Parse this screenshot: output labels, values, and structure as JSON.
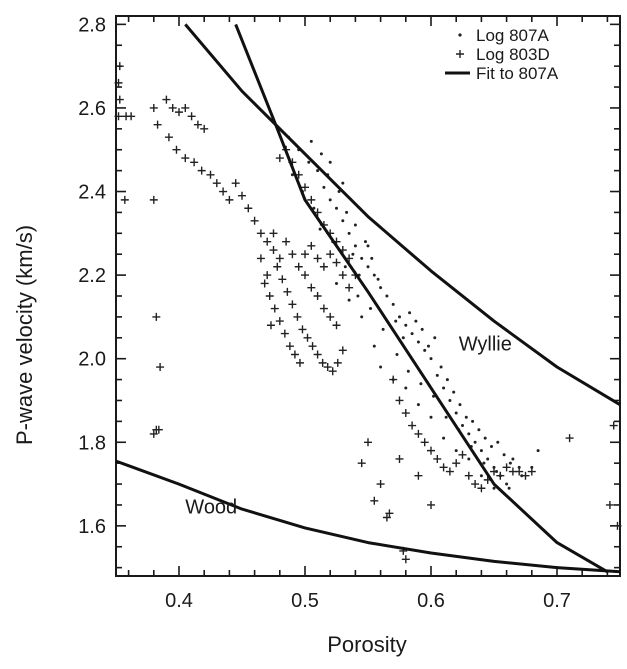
{
  "chart_data": {
    "type": "scatter",
    "xlabel": "Porosity",
    "ylabel": "P-wave velocity (km/s)",
    "xlim": [
      0.35,
      0.75
    ],
    "ylim": [
      1.48,
      2.82
    ],
    "xticks": [
      0.4,
      0.5,
      0.6,
      0.7
    ],
    "yticks": [
      1.6,
      1.8,
      2.0,
      2.2,
      2.4,
      2.6,
      2.8
    ],
    "xtick_labels": [
      "0.4",
      "0.5",
      "0.6",
      "0.7"
    ],
    "ytick_labels": [
      "1.6",
      "1.8",
      "2.0",
      "2.2",
      "2.4",
      "2.6",
      "2.8"
    ],
    "grid": false,
    "legend_position": "top-right",
    "legend": [
      {
        "label": "Log 807A",
        "marker": "dot"
      },
      {
        "label": "Log 803D",
        "marker": "plus"
      },
      {
        "label": "Fit to 807A",
        "marker": "line"
      }
    ],
    "series": [
      {
        "name": "Log 807A",
        "marker": "dot",
        "points": [
          [
            0.487,
            2.53
          ],
          [
            0.495,
            2.5
          ],
          [
            0.503,
            2.47
          ],
          [
            0.51,
            2.45
          ],
          [
            0.515,
            2.41
          ],
          [
            0.52,
            2.38
          ],
          [
            0.525,
            2.36
          ],
          [
            0.53,
            2.33
          ],
          [
            0.535,
            2.3
          ],
          [
            0.54,
            2.27
          ],
          [
            0.545,
            2.24
          ],
          [
            0.55,
            2.22
          ],
          [
            0.555,
            2.2
          ],
          [
            0.56,
            2.17
          ],
          [
            0.57,
            2.13
          ],
          [
            0.575,
            2.1
          ],
          [
            0.58,
            2.08
          ],
          [
            0.585,
            2.06
          ],
          [
            0.59,
            2.04
          ],
          [
            0.595,
            2.02
          ],
          [
            0.6,
            2.0
          ],
          [
            0.605,
            1.96
          ],
          [
            0.61,
            1.93
          ],
          [
            0.615,
            1.9
          ],
          [
            0.62,
            1.87
          ],
          [
            0.625,
            1.84
          ],
          [
            0.63,
            1.82
          ],
          [
            0.635,
            1.8
          ],
          [
            0.64,
            1.78
          ],
          [
            0.645,
            1.76
          ],
          [
            0.65,
            1.74
          ],
          [
            0.655,
            1.72
          ],
          [
            0.66,
            1.7
          ],
          [
            0.665,
            1.76
          ],
          [
            0.67,
            1.74
          ],
          [
            0.505,
            2.52
          ],
          [
            0.513,
            2.49
          ],
          [
            0.518,
            2.44
          ],
          [
            0.527,
            2.4
          ],
          [
            0.533,
            2.35
          ],
          [
            0.538,
            2.25
          ],
          [
            0.543,
            2.2
          ],
          [
            0.548,
            2.28
          ],
          [
            0.553,
            2.24
          ],
          [
            0.558,
            2.19
          ],
          [
            0.565,
            2.15
          ],
          [
            0.572,
            2.09
          ],
          [
            0.578,
            2.05
          ],
          [
            0.583,
            2.11
          ],
          [
            0.588,
            2.09
          ],
          [
            0.593,
            2.07
          ],
          [
            0.598,
            2.03
          ],
          [
            0.603,
            2.05
          ],
          [
            0.608,
            1.98
          ],
          [
            0.613,
            1.95
          ],
          [
            0.618,
            1.92
          ],
          [
            0.623,
            1.89
          ],
          [
            0.628,
            1.86
          ],
          [
            0.633,
            1.85
          ],
          [
            0.638,
            1.83
          ],
          [
            0.643,
            1.81
          ],
          [
            0.648,
            1.79
          ],
          [
            0.653,
            1.8
          ],
          [
            0.658,
            1.77
          ],
          [
            0.663,
            1.75
          ],
          [
            0.49,
            2.44
          ],
          [
            0.498,
            2.4
          ],
          [
            0.507,
            2.36
          ],
          [
            0.512,
            2.31
          ],
          [
            0.522,
            2.28
          ],
          [
            0.532,
            2.22
          ],
          [
            0.542,
            2.15
          ],
          [
            0.552,
            2.12
          ],
          [
            0.562,
            2.07
          ],
          [
            0.573,
            2.01
          ],
          [
            0.582,
            1.97
          ],
          [
            0.592,
            1.94
          ],
          [
            0.602,
            1.91
          ],
          [
            0.612,
            1.86
          ],
          [
            0.622,
            1.83
          ],
          [
            0.632,
            1.79
          ],
          [
            0.642,
            1.75
          ],
          [
            0.652,
            1.73
          ],
          [
            0.662,
            1.69
          ],
          [
            0.672,
            1.72
          ],
          [
            0.68,
            1.74
          ],
          [
            0.685,
            1.78
          ],
          [
            0.56,
            1.98
          ],
          [
            0.57,
            1.95
          ],
          [
            0.58,
            1.93
          ],
          [
            0.59,
            1.89
          ],
          [
            0.6,
            1.86
          ],
          [
            0.61,
            1.81
          ],
          [
            0.62,
            1.78
          ],
          [
            0.63,
            1.76
          ],
          [
            0.64,
            1.72
          ],
          [
            0.65,
            1.69
          ],
          [
            0.525,
            2.18
          ],
          [
            0.535,
            2.14
          ],
          [
            0.545,
            2.1
          ],
          [
            0.555,
            2.03
          ],
          [
            0.54,
            2.32
          ],
          [
            0.55,
            2.27
          ],
          [
            0.53,
            2.42
          ],
          [
            0.52,
            2.47
          ]
        ]
      },
      {
        "name": "Log 803D",
        "marker": "plus",
        "points": [
          [
            0.353,
            2.7
          ],
          [
            0.352,
            2.66
          ],
          [
            0.353,
            2.62
          ],
          [
            0.352,
            2.58
          ],
          [
            0.362,
            2.58
          ],
          [
            0.38,
            2.6
          ],
          [
            0.39,
            2.62
          ],
          [
            0.395,
            2.6
          ],
          [
            0.4,
            2.59
          ],
          [
            0.405,
            2.6
          ],
          [
            0.41,
            2.58
          ],
          [
            0.415,
            2.56
          ],
          [
            0.42,
            2.55
          ],
          [
            0.383,
            2.56
          ],
          [
            0.392,
            2.53
          ],
          [
            0.398,
            2.5
          ],
          [
            0.405,
            2.48
          ],
          [
            0.412,
            2.47
          ],
          [
            0.418,
            2.45
          ],
          [
            0.425,
            2.44
          ],
          [
            0.43,
            2.42
          ],
          [
            0.435,
            2.4
          ],
          [
            0.44,
            2.38
          ],
          [
            0.445,
            2.42
          ],
          [
            0.45,
            2.39
          ],
          [
            0.455,
            2.36
          ],
          [
            0.46,
            2.33
          ],
          [
            0.465,
            2.3
          ],
          [
            0.47,
            2.28
          ],
          [
            0.475,
            2.3
          ],
          [
            0.48,
            2.48
          ],
          [
            0.485,
            2.5
          ],
          [
            0.49,
            2.47
          ],
          [
            0.495,
            2.44
          ],
          [
            0.5,
            2.41
          ],
          [
            0.505,
            2.38
          ],
          [
            0.51,
            2.35
          ],
          [
            0.515,
            2.32
          ],
          [
            0.52,
            2.3
          ],
          [
            0.525,
            2.28
          ],
          [
            0.53,
            2.26
          ],
          [
            0.535,
            2.24
          ],
          [
            0.54,
            2.2
          ],
          [
            0.478,
            2.22
          ],
          [
            0.482,
            2.19
          ],
          [
            0.486,
            2.16
          ],
          [
            0.49,
            2.13
          ],
          [
            0.494,
            2.1
          ],
          [
            0.498,
            2.07
          ],
          [
            0.502,
            2.05
          ],
          [
            0.506,
            2.03
          ],
          [
            0.51,
            2.01
          ],
          [
            0.514,
            1.99
          ],
          [
            0.518,
            1.98
          ],
          [
            0.522,
            1.97
          ],
          [
            0.526,
            1.99
          ],
          [
            0.53,
            2.02
          ],
          [
            0.475,
            2.26
          ],
          [
            0.48,
            2.24
          ],
          [
            0.485,
            2.28
          ],
          [
            0.49,
            2.25
          ],
          [
            0.495,
            2.22
          ],
          [
            0.5,
            2.2
          ],
          [
            0.505,
            2.17
          ],
          [
            0.51,
            2.15
          ],
          [
            0.515,
            2.12
          ],
          [
            0.52,
            2.1
          ],
          [
            0.525,
            2.08
          ],
          [
            0.47,
            2.2
          ],
          [
            0.472,
            2.15
          ],
          [
            0.476,
            2.12
          ],
          [
            0.48,
            2.09
          ],
          [
            0.484,
            2.06
          ],
          [
            0.488,
            2.03
          ],
          [
            0.492,
            2.01
          ],
          [
            0.496,
            1.99
          ],
          [
            0.5,
            2.25
          ],
          [
            0.505,
            2.27
          ],
          [
            0.51,
            2.24
          ],
          [
            0.515,
            2.22
          ],
          [
            0.52,
            2.25
          ],
          [
            0.525,
            2.23
          ],
          [
            0.53,
            2.2
          ],
          [
            0.535,
            2.17
          ],
          [
            0.465,
            2.24
          ],
          [
            0.468,
            2.18
          ],
          [
            0.473,
            2.08
          ],
          [
            0.382,
            2.1
          ],
          [
            0.382,
            1.83
          ],
          [
            0.38,
            1.82
          ],
          [
            0.384,
            1.83
          ],
          [
            0.385,
            1.98
          ],
          [
            0.38,
            2.38
          ],
          [
            0.357,
            2.38
          ],
          [
            0.358,
            2.58
          ],
          [
            0.57,
            1.95
          ],
          [
            0.575,
            1.9
          ],
          [
            0.58,
            1.87
          ],
          [
            0.585,
            1.84
          ],
          [
            0.59,
            1.82
          ],
          [
            0.595,
            1.8
          ],
          [
            0.6,
            1.78
          ],
          [
            0.605,
            1.76
          ],
          [
            0.61,
            1.74
          ],
          [
            0.615,
            1.73
          ],
          [
            0.62,
            1.75
          ],
          [
            0.625,
            1.77
          ],
          [
            0.63,
            1.72
          ],
          [
            0.635,
            1.7
          ],
          [
            0.64,
            1.69
          ],
          [
            0.645,
            1.71
          ],
          [
            0.65,
            1.73
          ],
          [
            0.655,
            1.72
          ],
          [
            0.66,
            1.74
          ],
          [
            0.665,
            1.73
          ],
          [
            0.67,
            1.73
          ],
          [
            0.675,
            1.72
          ],
          [
            0.68,
            1.73
          ],
          [
            0.71,
            1.81
          ],
          [
            0.745,
            1.84
          ],
          [
            0.742,
            1.65
          ],
          [
            0.748,
            1.6
          ],
          [
            0.565,
            1.62
          ],
          [
            0.567,
            1.63
          ],
          [
            0.578,
            1.54
          ],
          [
            0.58,
            1.52
          ],
          [
            0.56,
            1.7
          ],
          [
            0.575,
            1.76
          ],
          [
            0.555,
            1.66
          ],
          [
            0.6,
            1.65
          ],
          [
            0.545,
            1.75
          ],
          [
            0.55,
            1.8
          ],
          [
            0.59,
            1.72
          ]
        ]
      }
    ],
    "curves": [
      {
        "name": "Fit to 807A",
        "points": [
          [
            0.445,
            2.8
          ],
          [
            0.478,
            2.55
          ],
          [
            0.5,
            2.38
          ],
          [
            0.55,
            2.16
          ],
          [
            0.6,
            1.93
          ],
          [
            0.65,
            1.7
          ],
          [
            0.7,
            1.56
          ],
          [
            0.74,
            1.49
          ]
        ]
      },
      {
        "name": "Wyllie",
        "points": [
          [
            0.405,
            2.8
          ],
          [
            0.45,
            2.64
          ],
          [
            0.5,
            2.49
          ],
          [
            0.55,
            2.34
          ],
          [
            0.6,
            2.21
          ],
          [
            0.65,
            2.09
          ],
          [
            0.7,
            1.98
          ],
          [
            0.75,
            1.89
          ]
        ]
      },
      {
        "name": "Wood",
        "points": [
          [
            0.35,
            1.755
          ],
          [
            0.4,
            1.7
          ],
          [
            0.45,
            1.64
          ],
          [
            0.5,
            1.595
          ],
          [
            0.55,
            1.56
          ],
          [
            0.6,
            1.535
          ],
          [
            0.65,
            1.515
          ],
          [
            0.7,
            1.5
          ],
          [
            0.75,
            1.49
          ]
        ]
      }
    ],
    "annotations": [
      {
        "text": "Wyllie",
        "x": 0.622,
        "y": 2.02
      },
      {
        "text": "Wood",
        "x": 0.405,
        "y": 1.63
      }
    ]
  }
}
